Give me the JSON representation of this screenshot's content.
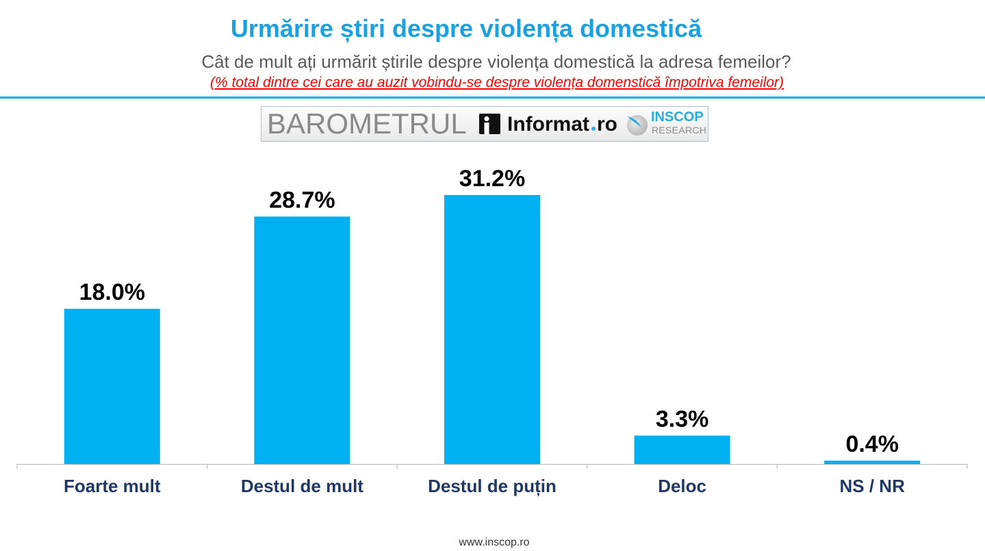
{
  "chart_data": {
    "type": "bar",
    "title": "Urmărire știri despre violența domestică",
    "subtitle": "Cât de mult ați urmărit știrile despre violența domestică la adresa femeilor?",
    "note": "(% total dintre cei care au auzit vobindu-se despre violența domenstică împotriva femeilor)",
    "categories": [
      "Foarte mult",
      "Destul de mult",
      "Destul de puțin",
      "Deloc",
      "NS / NR"
    ],
    "values": [
      18.0,
      28.7,
      31.2,
      3.3,
      0.4
    ],
    "data_labels": [
      "18.0%",
      "28.7%",
      "31.2%",
      "3.3%",
      "0.4%"
    ],
    "grid": false,
    "legend": false
  },
  "logos": {
    "barometer": "BAROMETRUL",
    "informat_icon": "info-icon",
    "informat_name": "Informat",
    "informat_domain": "ro",
    "inscop_icon": "inscop-swoosh-icon",
    "inscop_name": "INSCOP",
    "inscop_tagline": "RESEARCH"
  },
  "footer": {
    "url": "www.inscop.ro"
  },
  "colors": {
    "title": "#1BA1E2",
    "subtitle": "#595959",
    "note": "#FF0000",
    "rule": "#00AEEF",
    "bar": "#00B0F0",
    "value_label": "#000000",
    "category_label": "#1F3864",
    "axis": "#BFBFBF",
    "brand_blue": "#29ABE2",
    "brand_gray": "#8A8A8A",
    "footer": "#333333"
  }
}
